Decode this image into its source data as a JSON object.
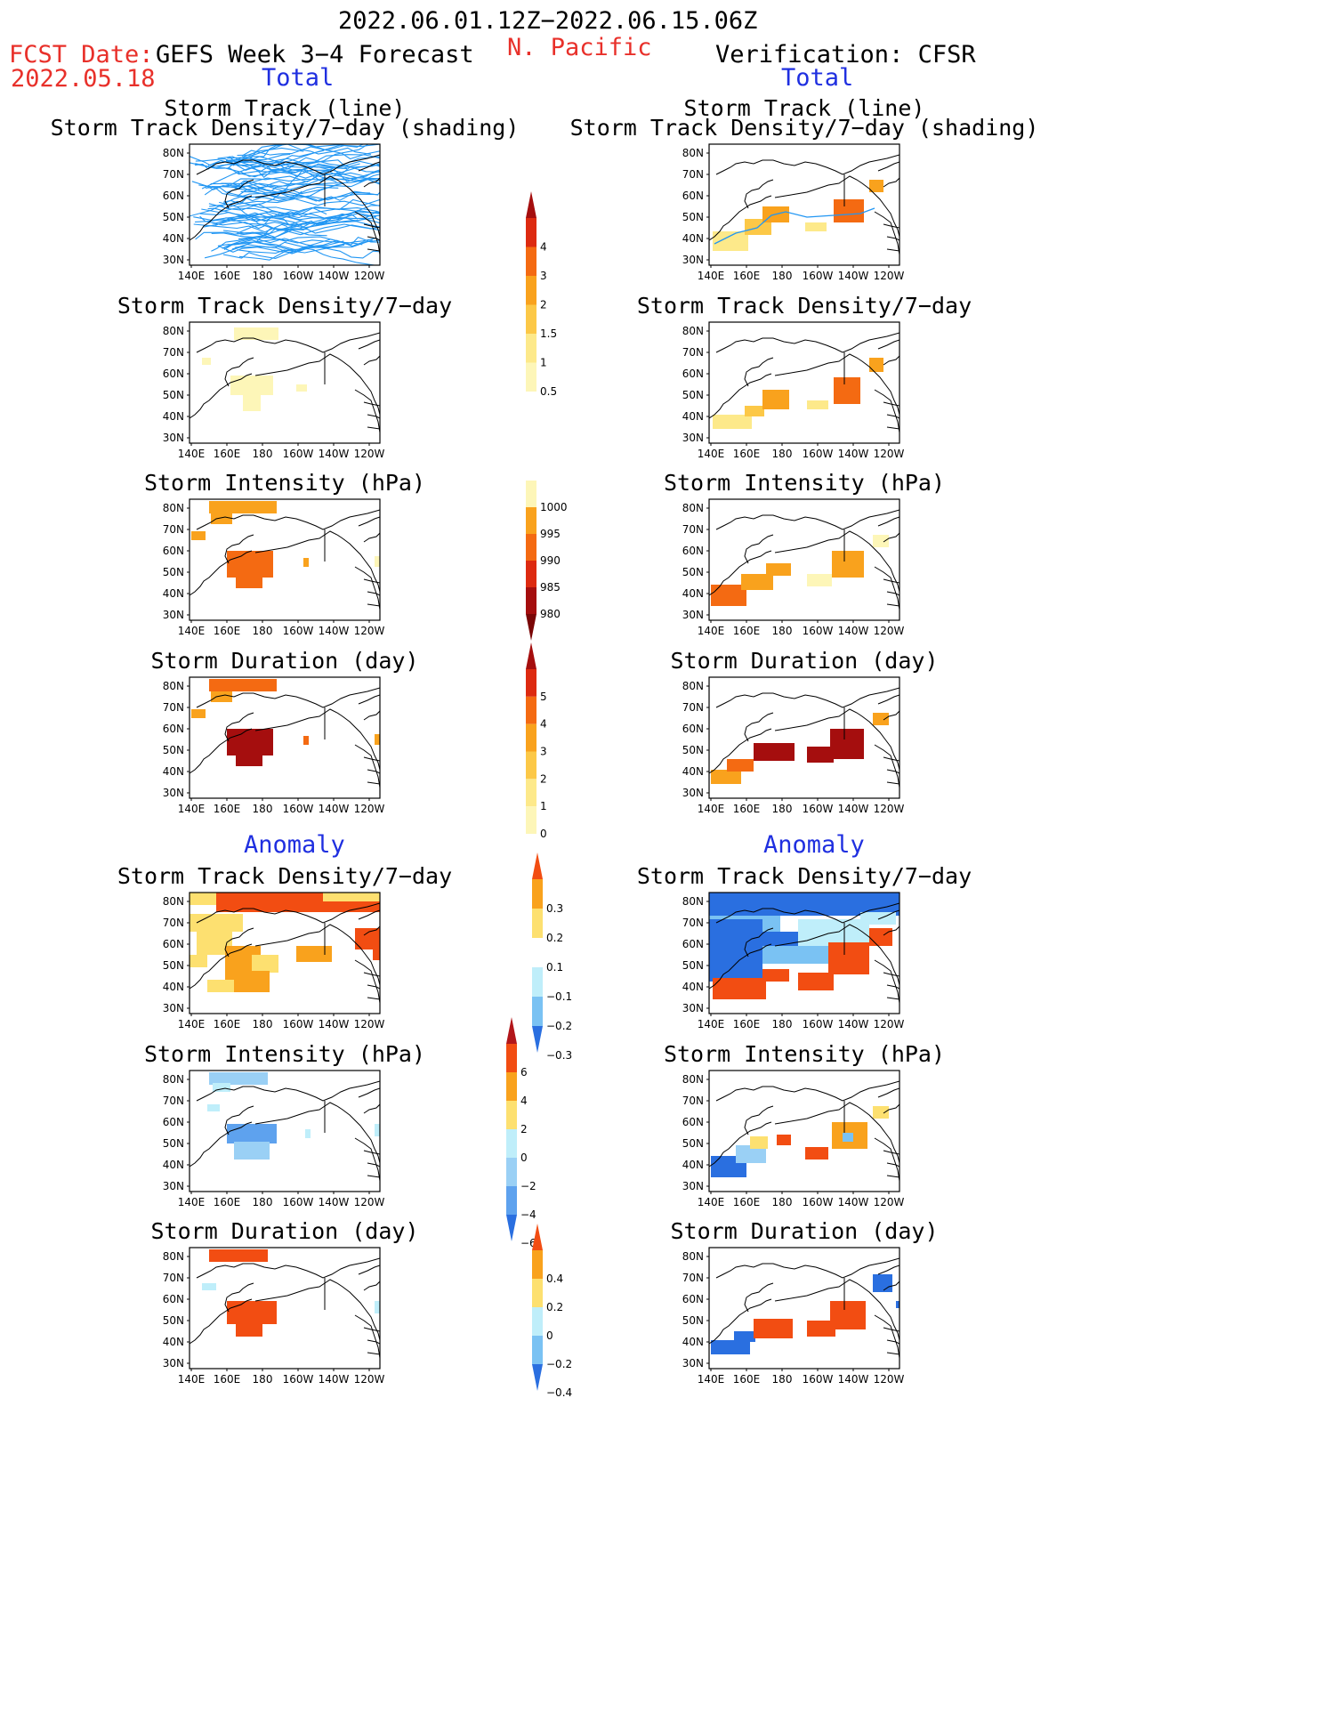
{
  "header": {
    "period": "2022.06.01.12Z−2022.06.15.06Z",
    "region": "N. Pacific",
    "fcst_label": "FCST Date:",
    "fcst_date": "2022.05.18",
    "left_title": "GEFS Week 3−4 Forecast",
    "right_title": "Verification: CFSR",
    "total_left": "Total",
    "total_right": "Total",
    "anomaly_left": "Anomaly",
    "anomaly_right": "Anomaly"
  },
  "panel_titles": {
    "track_line": "Storm Track (line)",
    "track_shading": "Storm Track Density/7−day (shading)",
    "density": "Storm Track Density/7−day",
    "intensity": "Storm Intensity (hPa)",
    "duration": "Storm Duration (day)"
  },
  "axes": {
    "lon_labels": [
      "140E",
      "160E",
      "180",
      "160W",
      "140W",
      "120W"
    ],
    "lat_labels": [
      "80N",
      "70N",
      "60N",
      "50N",
      "40N",
      "30N"
    ]
  },
  "colorbars": {
    "density_total": {
      "labels": [
        "4",
        "3",
        "2",
        "1.5",
        "1",
        "0.5"
      ],
      "colors": [
        "#a50e0e",
        "#dd2a10",
        "#f46a12",
        "#f9a21d",
        "#fcc847",
        "#fde98a",
        "#fdf6b8"
      ]
    },
    "intensity_total": {
      "labels": [
        "1000",
        "995",
        "990",
        "985",
        "980"
      ],
      "colors": [
        "#fdf6b8",
        "#f9a21d",
        "#f46a12",
        "#dd2a10",
        "#a50e0e",
        "#7a0606"
      ]
    },
    "duration_total": {
      "labels": [
        "5",
        "4",
        "3",
        "2",
        "1",
        "0"
      ],
      "colors": [
        "#a50e0e",
        "#dd2a10",
        "#f46a12",
        "#f9a21d",
        "#fcc847",
        "#fde98a",
        "#fdf6b8"
      ]
    },
    "density_anom": {
      "labels": [
        "0.3",
        "0.2",
        "0.1",
        "−0.1",
        "−0.2",
        "−0.3"
      ],
      "colors": [
        "#f24d12",
        "#f9a21d",
        "#fde070",
        "#ffffff",
        "#bfeefa",
        "#7ac2f3",
        "#2a6fe0"
      ]
    },
    "intensity_anom": {
      "labels": [
        "6",
        "4",
        "2",
        "0",
        "−2",
        "−4",
        "−6"
      ],
      "colors": [
        "#b2161a",
        "#f24d12",
        "#f9a21d",
        "#fde070",
        "#bfeefa",
        "#9ad0f5",
        "#5ea2ee",
        "#2a6fe0"
      ]
    },
    "duration_anom": {
      "labels": [
        "0.4",
        "0.2",
        "0",
        "−0.2",
        "−0.4"
      ],
      "colors": [
        "#f24d12",
        "#f9a21d",
        "#fde070",
        "#bfeefa",
        "#7ac2f3",
        "#2a6fe0"
      ]
    }
  },
  "colors": {
    "track_line": "#2196f3",
    "header_red": "#e8302a",
    "header_blue": "#1f2fe0"
  }
}
